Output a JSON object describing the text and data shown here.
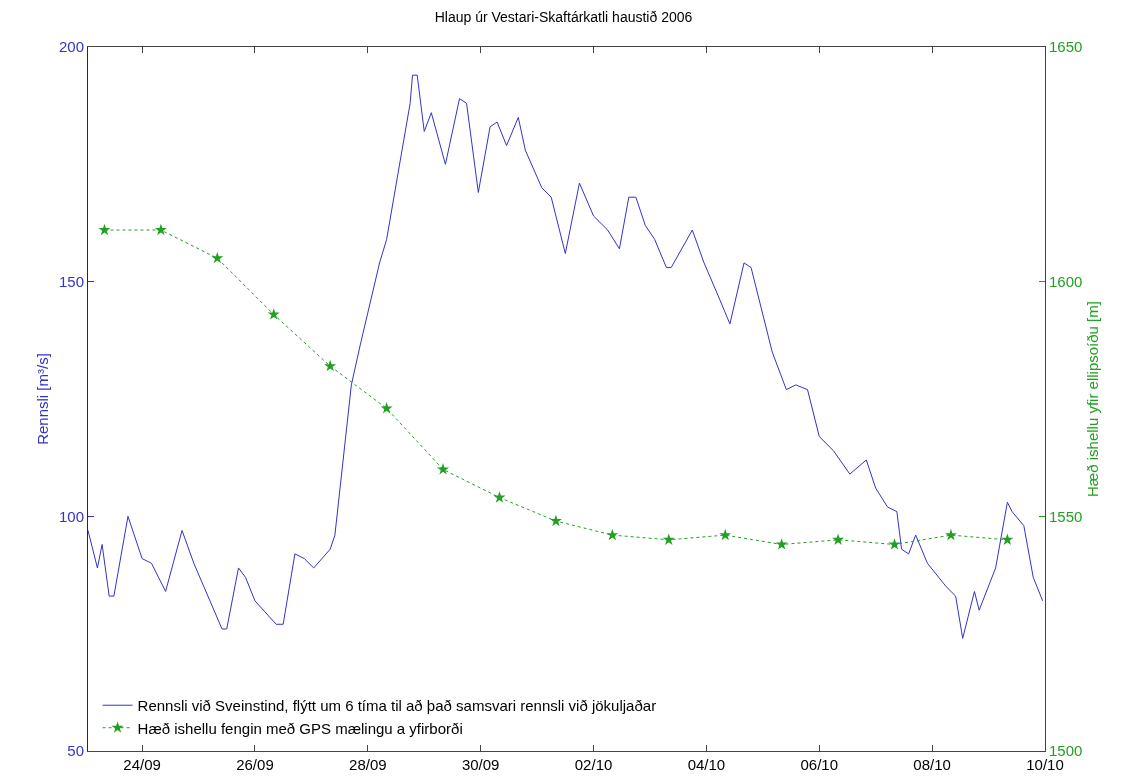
{
  "chart_data": {
    "type": "line",
    "title": "Hlaup úr Vestari-Skaftárkatli haustið 2006",
    "ylabel": "Rennsli [m³/s]",
    "y2label": "Hæð ishellu yfir ellipsoíðu [m]",
    "xlim": [
      "2006-09-23T01:00",
      "2006-10-10T00:00"
    ],
    "xticks": [
      {
        "value": "2006-09-24",
        "label": "24/09"
      },
      {
        "value": "2006-09-26",
        "label": "26/09"
      },
      {
        "value": "2006-09-28",
        "label": "28/09"
      },
      {
        "value": "2006-09-30",
        "label": "30/09"
      },
      {
        "value": "2006-10-02",
        "label": "02/10"
      },
      {
        "value": "2006-10-04",
        "label": "04/10"
      },
      {
        "value": "2006-10-06",
        "label": "06/10"
      },
      {
        "value": "2006-10-08",
        "label": "08/10"
      },
      {
        "value": "2006-10-10",
        "label": "10/10"
      }
    ],
    "ylim": [
      50,
      200
    ],
    "yticks": [
      50,
      100,
      150,
      200
    ],
    "y2lim": [
      1500,
      1650
    ],
    "y2ticks": [
      1500,
      1550,
      1600,
      1650
    ],
    "grid": false,
    "legend": "bottom left",
    "series": [
      {
        "name": "Rennsli við Sveinstind, flýtt um 6 tíma til að það samsvari rennsli við jökuljaðar",
        "color": "#3333cc",
        "marker": "none",
        "line_style": "solid",
        "x": [
          "2006-09-23T01:00",
          "2006-09-23T05:00",
          "2006-09-23T07:00",
          "2006-09-23T10:00",
          "2006-09-23T12:00",
          "2006-09-23T18:00",
          "2006-09-24T00:00",
          "2006-09-24T04:00",
          "2006-09-24T10:00",
          "2006-09-24T17:00",
          "2006-09-24T22:00",
          "2006-09-25T10:00",
          "2006-09-25T12:00",
          "2006-09-25T17:00",
          "2006-09-25T20:00",
          "2006-09-26T00:00",
          "2006-09-26T09:00",
          "2006-09-26T12:00",
          "2006-09-26T17:00",
          "2006-09-26T21:00",
          "2006-09-27T01:00",
          "2006-09-27T08:00",
          "2006-09-27T10:00",
          "2006-09-27T17:00",
          "2006-09-27T21:00",
          "2006-09-28T05:00",
          "2006-09-28T08:00",
          "2006-09-28T18:00",
          "2006-09-28T19:00",
          "2006-09-28T21:00",
          "2006-09-29T00:00",
          "2006-09-29T03:00",
          "2006-09-29T09:00",
          "2006-09-29T15:00",
          "2006-09-29T18:00",
          "2006-09-29T23:00",
          "2006-09-30T04:00",
          "2006-09-30T07:00",
          "2006-09-30T11:00",
          "2006-09-30T16:00",
          "2006-09-30T19:00",
          "2006-10-01T02:00",
          "2006-10-01T06:00",
          "2006-10-01T12:00",
          "2006-10-01T18:00",
          "2006-10-02T00:00",
          "2006-10-02T06:00",
          "2006-10-02T11:00",
          "2006-10-02T15:00",
          "2006-10-02T18:00",
          "2006-10-02T22:00",
          "2006-10-03T02:00",
          "2006-10-03T07:00",
          "2006-10-03T09:00",
          "2006-10-03T18:00",
          "2006-10-03T23:00",
          "2006-10-04T05:00",
          "2006-10-04T10:00",
          "2006-10-04T16:00",
          "2006-10-04T19:00",
          "2006-10-05T04:00",
          "2006-10-05T10:00",
          "2006-10-05T14:00",
          "2006-10-05T19:00",
          "2006-10-06T00:00",
          "2006-10-06T06:00",
          "2006-10-06T13:00",
          "2006-10-06T20:00",
          "2006-10-07T00:00",
          "2006-10-07T05:00",
          "2006-10-07T09:00",
          "2006-10-07T11:00",
          "2006-10-07T14:00",
          "2006-10-07T17:00",
          "2006-10-07T22:00",
          "2006-10-08T06:00",
          "2006-10-08T10:00",
          "2006-10-08T13:00",
          "2006-10-08T18:00",
          "2006-10-08T20:00",
          "2006-10-09T03:00",
          "2006-10-09T08:00",
          "2006-10-09T10:00",
          "2006-10-09T15:00",
          "2006-10-09T19:00",
          "2006-10-09T23:00"
        ],
        "values": [
          97,
          89,
          94,
          83,
          83,
          100,
          91,
          90,
          84,
          97,
          90,
          76,
          76,
          89,
          87,
          82,
          77,
          77,
          92,
          91,
          89,
          93,
          96,
          128,
          137,
          154,
          159,
          188,
          194,
          194,
          182,
          186,
          175,
          189,
          188,
          169,
          183,
          184,
          179,
          185,
          178,
          170,
          168,
          156,
          171,
          164,
          161,
          157,
          168,
          168,
          162,
          159,
          153,
          153,
          161,
          154,
          147,
          141,
          154,
          153,
          135,
          127,
          128,
          127,
          117,
          114,
          109,
          112,
          106,
          102,
          101,
          93,
          92,
          96,
          90,
          85,
          83,
          74,
          84,
          80,
          89,
          103,
          101,
          98,
          87,
          82
        ]
      },
      {
        "name": "Hæð ishellu fengin með GPS mælingu a yfirborði",
        "color": "#22a022",
        "marker": "star",
        "line_style": "dotted",
        "axis": "y2",
        "x": [
          "2006-09-23T08:00",
          "2006-09-24T08:00",
          "2006-09-25T08:00",
          "2006-09-26T08:00",
          "2006-09-27T08:00",
          "2006-09-28T08:00",
          "2006-09-29T08:00",
          "2006-09-30T08:00",
          "2006-10-01T08:00",
          "2006-10-02T08:00",
          "2006-10-03T08:00",
          "2006-10-04T08:00",
          "2006-10-05T08:00",
          "2006-10-06T08:00",
          "2006-10-07T08:00",
          "2006-10-08T08:00",
          "2006-10-09T08:00"
        ],
        "values": [
          1611,
          1611,
          1605,
          1593,
          1582,
          1573,
          1560,
          1554,
          1549,
          1546,
          1545,
          1546,
          1544,
          1545,
          1544,
          1546,
          1545
        ]
      }
    ]
  }
}
